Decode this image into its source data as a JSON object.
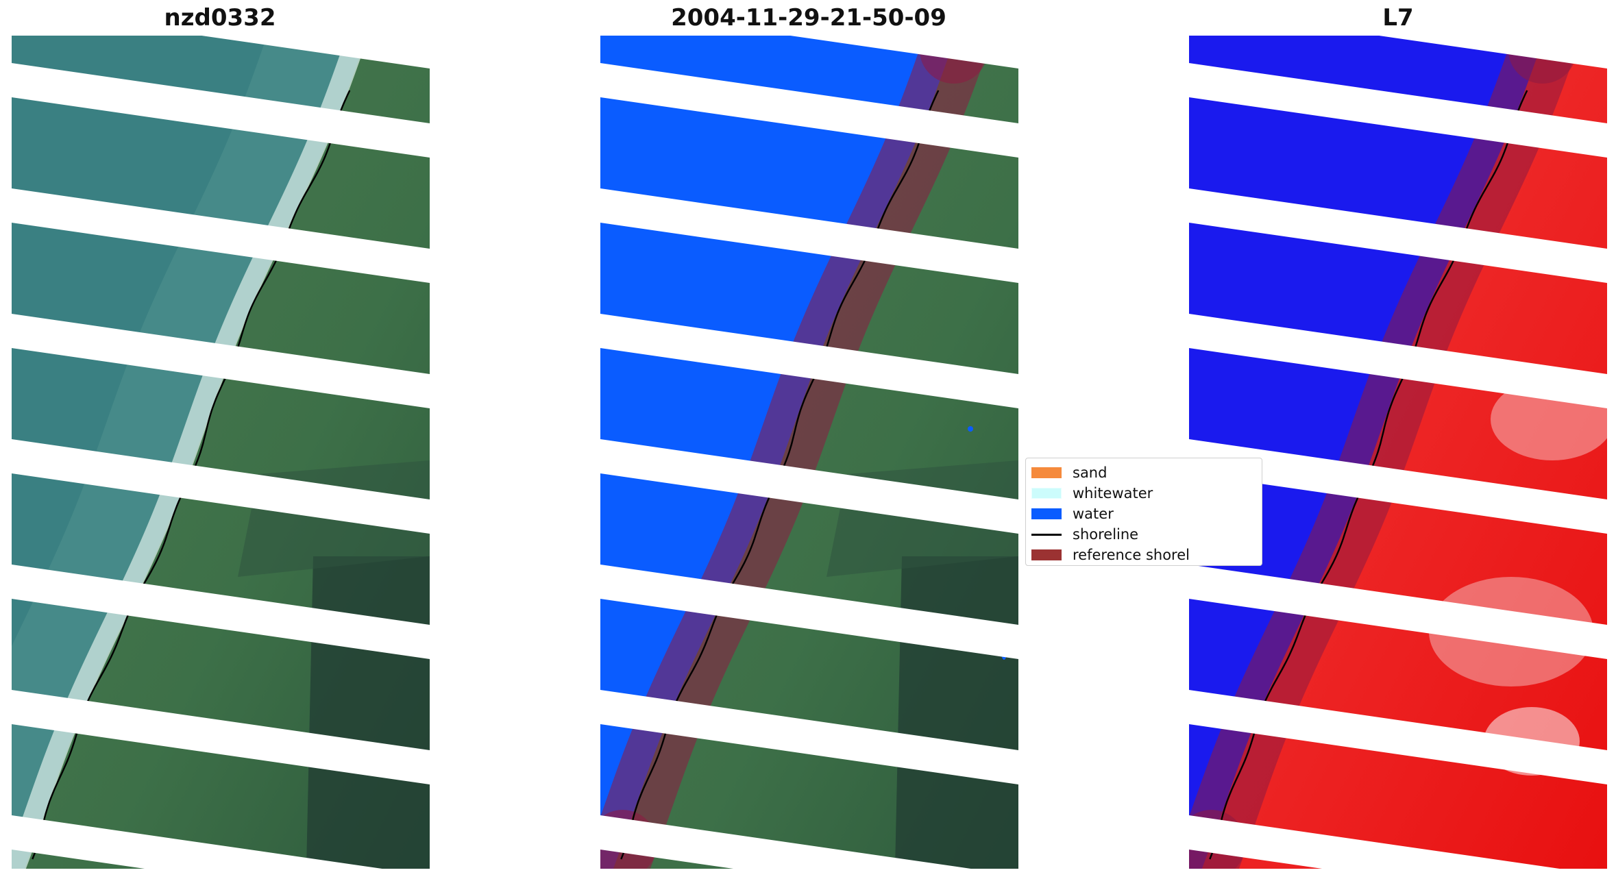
{
  "panels": [
    {
      "title": "nzd0332",
      "style": "rgb"
    },
    {
      "title": "2004-11-29-21-50-09",
      "style": "classified"
    },
    {
      "title": "L7",
      "style": "index"
    }
  ],
  "legend": {
    "items": [
      {
        "label": "sand",
        "color": "#f58a3c",
        "kind": "patch"
      },
      {
        "label": "whitewater",
        "color": "#ccfcfc",
        "kind": "patch"
      },
      {
        "label": "water",
        "color": "#0a5cff",
        "kind": "patch"
      },
      {
        "label": "shoreline",
        "color": "#000000",
        "kind": "line"
      },
      {
        "label": "reference shorel",
        "color": "#9b3232",
        "kind": "patch"
      }
    ]
  },
  "colors": {
    "ocean": "#3a8082",
    "land": "#3d7048",
    "land_dark": "#223c33",
    "surf": "#d8ece6",
    "water_class": "#0a5cff",
    "index_water": "#1a1aee",
    "index_land": "#f01a1a",
    "reference_buffer": "#8e1a42",
    "no_data_stripe": "#ffffff"
  },
  "icons": {
    "shoreline": "black-line",
    "reference_buffer": "translucent-band"
  }
}
